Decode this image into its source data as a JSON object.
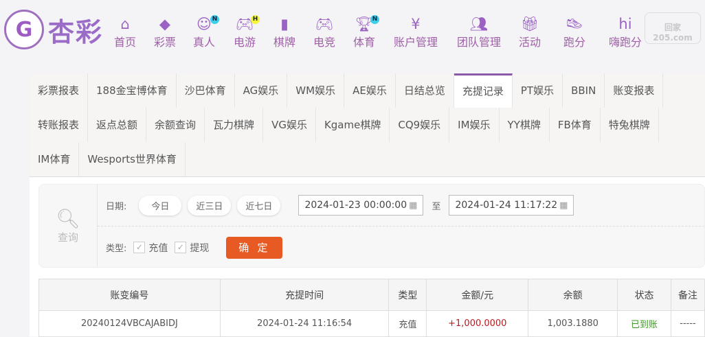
{
  "brand": {
    "logo_text": "杏彩",
    "logo_mark": "G"
  },
  "nav": [
    {
      "label": "首页",
      "icon": "home-icon",
      "glyph": "⌂"
    },
    {
      "label": "彩票",
      "icon": "ticket-icon",
      "glyph": "◆"
    },
    {
      "label": "真人",
      "icon": "live-dealer-icon",
      "glyph": "☺",
      "badge": "N",
      "badge_color": "#3ccfe8"
    },
    {
      "label": "电游",
      "icon": "gamepad-icon",
      "glyph": "🎮︎",
      "badge": "H",
      "badge_color": "#f5f53a"
    },
    {
      "label": "棋牌",
      "icon": "cards-icon",
      "glyph": "▮"
    },
    {
      "label": "电竞",
      "icon": "esports-gamepad-icon",
      "glyph": "🎮︎"
    },
    {
      "label": "体育",
      "icon": "trophy-icon",
      "glyph": "🏆︎",
      "badge": "N",
      "badge_color": "#3ccfe8"
    },
    {
      "label": "账户管理",
      "icon": "yen-coin-icon",
      "glyph": "¥"
    },
    {
      "label": "团队管理",
      "icon": "team-icon",
      "glyph": "👥︎"
    },
    {
      "label": "活动",
      "icon": "gift-icon",
      "glyph": "🎁︎"
    },
    {
      "label": "跑分",
      "icon": "running-shoe-icon",
      "glyph": "👟︎"
    },
    {
      "label": "嗨跑分",
      "icon": "hi-app-icon",
      "glyph": "hi"
    }
  ],
  "watermark": "回家205.com",
  "tabs": [
    "彩票报表",
    "188金宝博体育",
    "沙巴体育",
    "AG娱乐",
    "WM娱乐",
    "AE娱乐",
    "日结总览",
    "充提记录",
    "PT娱乐",
    "BBIN",
    "账变报表",
    "转账报表",
    "返点总额",
    "余额查询",
    "瓦力棋牌",
    "VG娱乐",
    "Kgame棋牌",
    "CQ9娱乐",
    "IM娱乐",
    "YY棋牌",
    "FB体育",
    "特兔棋牌",
    "IM体育",
    "Wesports世界体育"
  ],
  "active_tab": "充提记录",
  "query": {
    "search_label": "查询",
    "date_label": "日期:",
    "quick": [
      "今日",
      "近三日",
      "近七日"
    ],
    "start_date": "2024-01-23 00:00:00",
    "to_label": "至",
    "end_date": "2024-01-24 11:17:22",
    "type_label": "类型:",
    "types": [
      {
        "label": "充值",
        "checked": true
      },
      {
        "label": "提现",
        "checked": true
      }
    ],
    "confirm": "确 定"
  },
  "table": {
    "headers": [
      "账变编号",
      "充提时间",
      "类型",
      "金额/元",
      "余额",
      "状态",
      "备注"
    ],
    "rows": [
      [
        "20240124VBCAJABIDJ",
        "2024-01-24 11:16:54",
        "充值",
        "+1,000.0000",
        "1,003.1880",
        "已到账",
        "-----"
      ]
    ]
  },
  "colors": {
    "brand": "#9a6cc8",
    "accent": "#e85a24",
    "positive_amount": "#c0161e",
    "status_ok": "#3a9a1e"
  }
}
